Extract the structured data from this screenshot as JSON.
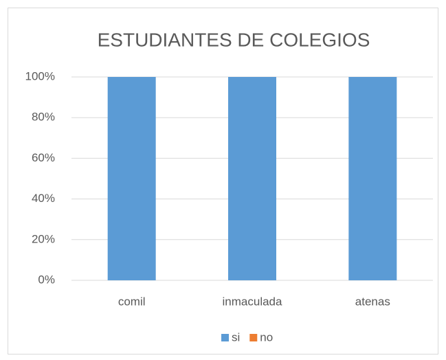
{
  "chart_data": {
    "type": "bar",
    "stacked": true,
    "title": "ESTUDIANTES DE COLEGIOS",
    "categories": [
      "comil",
      "inmaculada",
      "atenas"
    ],
    "series": [
      {
        "name": "si",
        "color": "#5b9bd5",
        "values": [
          100,
          100,
          100
        ]
      },
      {
        "name": "no",
        "color": "#ed7d31",
        "values": [
          0,
          0,
          0
        ]
      }
    ],
    "ylim": [
      0,
      100
    ],
    "yticks": [
      {
        "value": 0,
        "label": "0%"
      },
      {
        "value": 20,
        "label": "20%"
      },
      {
        "value": 40,
        "label": "40%"
      },
      {
        "value": 60,
        "label": "60%"
      },
      {
        "value": 80,
        "label": "80%"
      },
      {
        "value": 100,
        "label": "100%"
      }
    ],
    "grid": true,
    "legend": "bottom"
  }
}
